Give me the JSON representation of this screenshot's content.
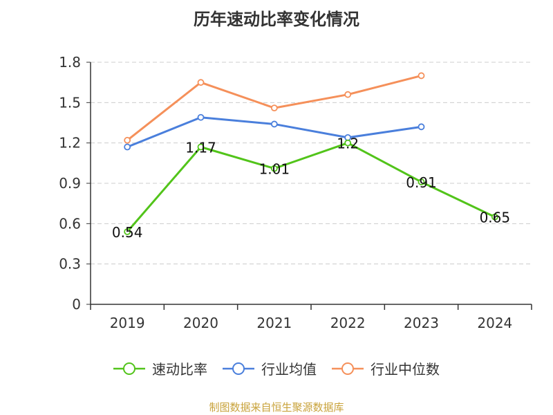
{
  "chart_data": {
    "type": "line",
    "title": "历年速动比率变化情况",
    "x": [
      "2019",
      "2020",
      "2021",
      "2022",
      "2023",
      "2024"
    ],
    "ylim": [
      0,
      1.8
    ],
    "yticks": [
      0,
      0.3,
      0.6,
      0.9,
      1.2,
      1.5,
      1.8
    ],
    "ytick_labels": [
      "0",
      "0.3",
      "0.6",
      "0.9",
      "1.2",
      "1.5",
      "1.8"
    ],
    "grid": true,
    "legend_position": "bottom",
    "series": [
      {
        "name": "速动比率",
        "color": "#52c41a",
        "values": [
          0.54,
          1.17,
          1.01,
          1.2,
          0.91,
          0.65
        ],
        "labels": [
          "0.54",
          "1.17",
          "1.01",
          "1.2",
          "0.91",
          "0.65"
        ]
      },
      {
        "name": "行业均值",
        "color": "#4a7fdc",
        "values": [
          1.17,
          1.39,
          1.34,
          1.24,
          1.32,
          null
        ]
      },
      {
        "name": "行业中位数",
        "color": "#f5905a",
        "values": [
          1.22,
          1.65,
          1.46,
          1.56,
          1.7,
          null
        ]
      }
    ]
  },
  "source_text": "制图数据来自恒生聚源数据库"
}
